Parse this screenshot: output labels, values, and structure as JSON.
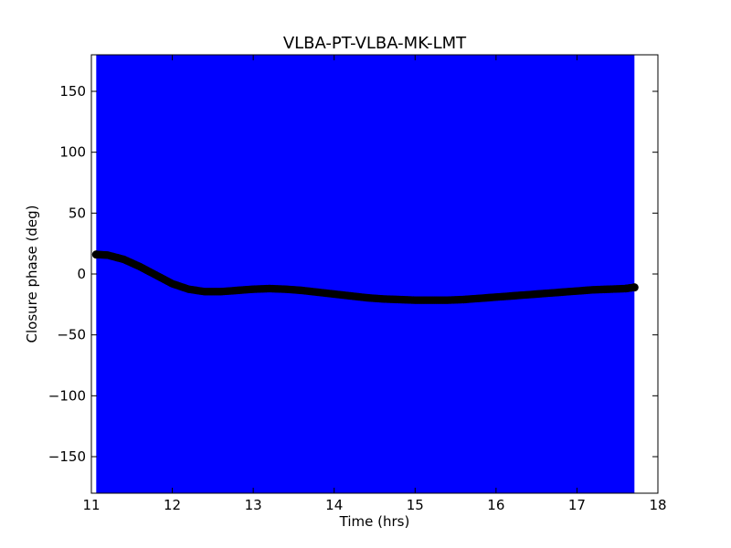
{
  "chart_data": {
    "type": "scatter",
    "title": "VLBA-PT-VLBA-MK-LMT",
    "xlabel": "Time (hrs)",
    "ylabel": "Closure phase (deg)",
    "xlim": [
      11,
      18
    ],
    "ylim": [
      -180,
      180
    ],
    "xticks": [
      11,
      12,
      13,
      14,
      15,
      16,
      17,
      18
    ],
    "yticks": [
      -150,
      -100,
      -50,
      0,
      50,
      100,
      150
    ],
    "xtick_labels": [
      "11",
      "12",
      "13",
      "14",
      "15",
      "16",
      "17",
      "18"
    ],
    "ytick_labels": [
      "−150",
      "−100",
      "−50",
      "0",
      "50",
      "100",
      "150"
    ],
    "grid": false,
    "legend": "none",
    "colors": {
      "band": "#0000ff",
      "points": "#000000",
      "axes": "#000000"
    },
    "band": {
      "x": [
        11.06,
        17.71
      ],
      "y": [
        -180,
        180
      ]
    },
    "series": [
      {
        "x": [
          11.06,
          11.2,
          11.4,
          11.6,
          11.8,
          12.0,
          12.2,
          12.4,
          12.6,
          12.8,
          13.0,
          13.2,
          13.4,
          13.6,
          13.8,
          14.0,
          14.2,
          14.4,
          14.6,
          14.8,
          15.0,
          15.2,
          15.4,
          15.6,
          15.8,
          16.0,
          16.2,
          16.4,
          16.6,
          16.8,
          17.0,
          17.2,
          17.4,
          17.6,
          17.71
        ],
        "values": [
          16,
          15.5,
          12,
          6,
          -1,
          -8,
          -12.5,
          -14.5,
          -14.5,
          -13.5,
          -12.5,
          -12,
          -12.5,
          -13.5,
          -15,
          -16.5,
          -18,
          -19.5,
          -20.5,
          -21,
          -21.5,
          -21.5,
          -21.5,
          -21,
          -20,
          -19,
          -18,
          -17,
          -16,
          -15,
          -14,
          -13,
          -12.5,
          -12,
          -11
        ]
      }
    ]
  }
}
